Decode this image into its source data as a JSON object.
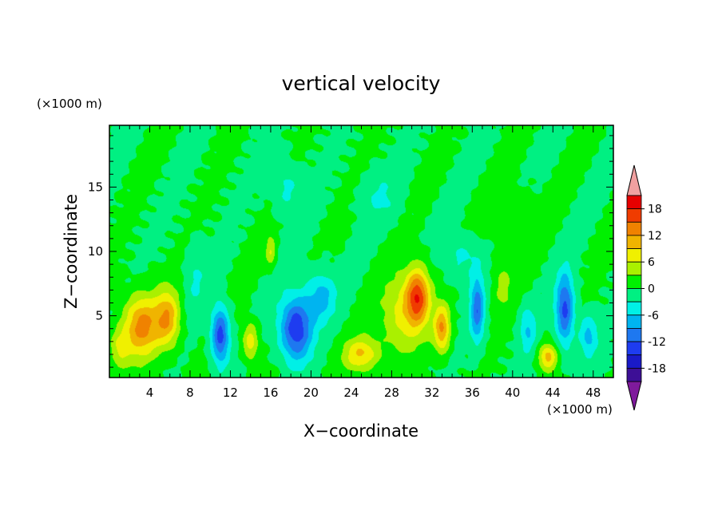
{
  "chart_data": {
    "type": "heatmap",
    "title": "vertical velocity",
    "xlabel": "X−coordinate",
    "ylabel": "Z−coordinate",
    "x_unit": "(×1000 m)",
    "y_unit": "(×1000 m)",
    "xlim": [
      0,
      50
    ],
    "ylim": [
      0.2,
      19.8
    ],
    "x_ticks": [
      4,
      8,
      12,
      16,
      20,
      24,
      28,
      32,
      36,
      40,
      44,
      48
    ],
    "y_ticks": [
      5,
      10,
      15
    ],
    "colorbar": {
      "levels": [
        -21,
        -18,
        -15,
        -12,
        -9,
        -6,
        -3,
        0,
        3,
        6,
        9,
        12,
        15,
        18,
        21
      ],
      "tick_labels": [
        18,
        12,
        6,
        0,
        -6,
        -12,
        -18
      ],
      "colors": [
        "#7f1a9c",
        "#3d0f96",
        "#1a1ac8",
        "#1e3cf0",
        "#1e78f0",
        "#00b4f0",
        "#00f0e6",
        "#00f082",
        "#00f000",
        "#aaf000",
        "#f0f000",
        "#f0b400",
        "#f08200",
        "#f03c00",
        "#e60000",
        "#f0a0a0"
      ]
    },
    "features": [
      {
        "x": 3.2,
        "z": 4.2,
        "amp": 13,
        "sx": 1.8,
        "sz": 2.4
      },
      {
        "x": 5.8,
        "z": 4.8,
        "amp": 11,
        "sx": 1.2,
        "sz": 2.2
      },
      {
        "x": 1.0,
        "z": 2.5,
        "amp": 6,
        "sx": 1.0,
        "sz": 1.5
      },
      {
        "x": 11.0,
        "z": 3.5,
        "amp": -14,
        "sx": 0.9,
        "sz": 2.2
      },
      {
        "x": 14.0,
        "z": 3.0,
        "amp": 8,
        "sx": 0.8,
        "sz": 1.5
      },
      {
        "x": 16.0,
        "z": 10.0,
        "amp": 6,
        "sx": 0.5,
        "sz": 1.2
      },
      {
        "x": 18.5,
        "z": 4.0,
        "amp": -15,
        "sx": 1.6,
        "sz": 2.5
      },
      {
        "x": 21.0,
        "z": 6.5,
        "amp": -7,
        "sx": 1.5,
        "sz": 2.0
      },
      {
        "x": 17.5,
        "z": 15.0,
        "amp": -4,
        "sx": 1.5,
        "sz": 2.0
      },
      {
        "x": 25.0,
        "z": 2.0,
        "amp": 9,
        "sx": 1.8,
        "sz": 1.3
      },
      {
        "x": 30.6,
        "z": 6.5,
        "amp": 16,
        "sx": 1.2,
        "sz": 2.2
      },
      {
        "x": 29.0,
        "z": 5.0,
        "amp": 7,
        "sx": 2.0,
        "sz": 3.0
      },
      {
        "x": 33.0,
        "z": 4.0,
        "amp": 12,
        "sx": 0.8,
        "sz": 1.8
      },
      {
        "x": 36.5,
        "z": 5.5,
        "amp": -11,
        "sx": 0.7,
        "sz": 2.5
      },
      {
        "x": 35.0,
        "z": 9.5,
        "amp": -4,
        "sx": 1.8,
        "sz": 1.8
      },
      {
        "x": 39.0,
        "z": 7.5,
        "amp": 4,
        "sx": 1.0,
        "sz": 2.5
      },
      {
        "x": 41.5,
        "z": 4.0,
        "amp": -6,
        "sx": 0.8,
        "sz": 1.8
      },
      {
        "x": 43.5,
        "z": 1.8,
        "amp": 10,
        "sx": 0.9,
        "sz": 1.0
      },
      {
        "x": 45.2,
        "z": 5.5,
        "amp": -13,
        "sx": 0.9,
        "sz": 2.8
      },
      {
        "x": 47.5,
        "z": 3.5,
        "amp": -7,
        "sx": 0.9,
        "sz": 1.6
      },
      {
        "x": 8.5,
        "z": 8.0,
        "amp": -3,
        "sx": 1.0,
        "sz": 3.0
      },
      {
        "x": 27.0,
        "z": 14.0,
        "amp": -3,
        "sx": 2.0,
        "sz": 2.0
      },
      {
        "x": 40.0,
        "z": 13.0,
        "amp": 3,
        "sx": 2.5,
        "sz": 2.0
      }
    ]
  }
}
